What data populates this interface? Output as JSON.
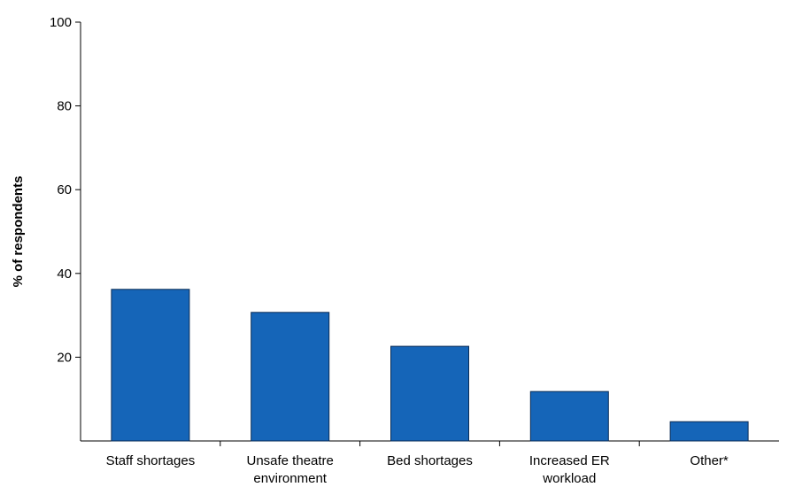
{
  "chart_data": {
    "type": "bar",
    "title": "",
    "xlabel": "",
    "ylabel": "% of respondents",
    "ylim": [
      0,
      100
    ],
    "yticks": [
      20,
      40,
      60,
      80,
      100
    ],
    "grid": false,
    "legend": "none",
    "categories": [
      [
        "Staff shortages"
      ],
      [
        "Unsafe theatre",
        "environment"
      ],
      [
        "Bed shortages"
      ],
      [
        "Increased ER",
        "workload"
      ],
      [
        "Other*"
      ]
    ],
    "values": [
      36.2,
      30.7,
      22.6,
      11.8,
      4.6
    ],
    "bar_color": "#1565b8",
    "bar_edge_color": "#0a2c55"
  }
}
